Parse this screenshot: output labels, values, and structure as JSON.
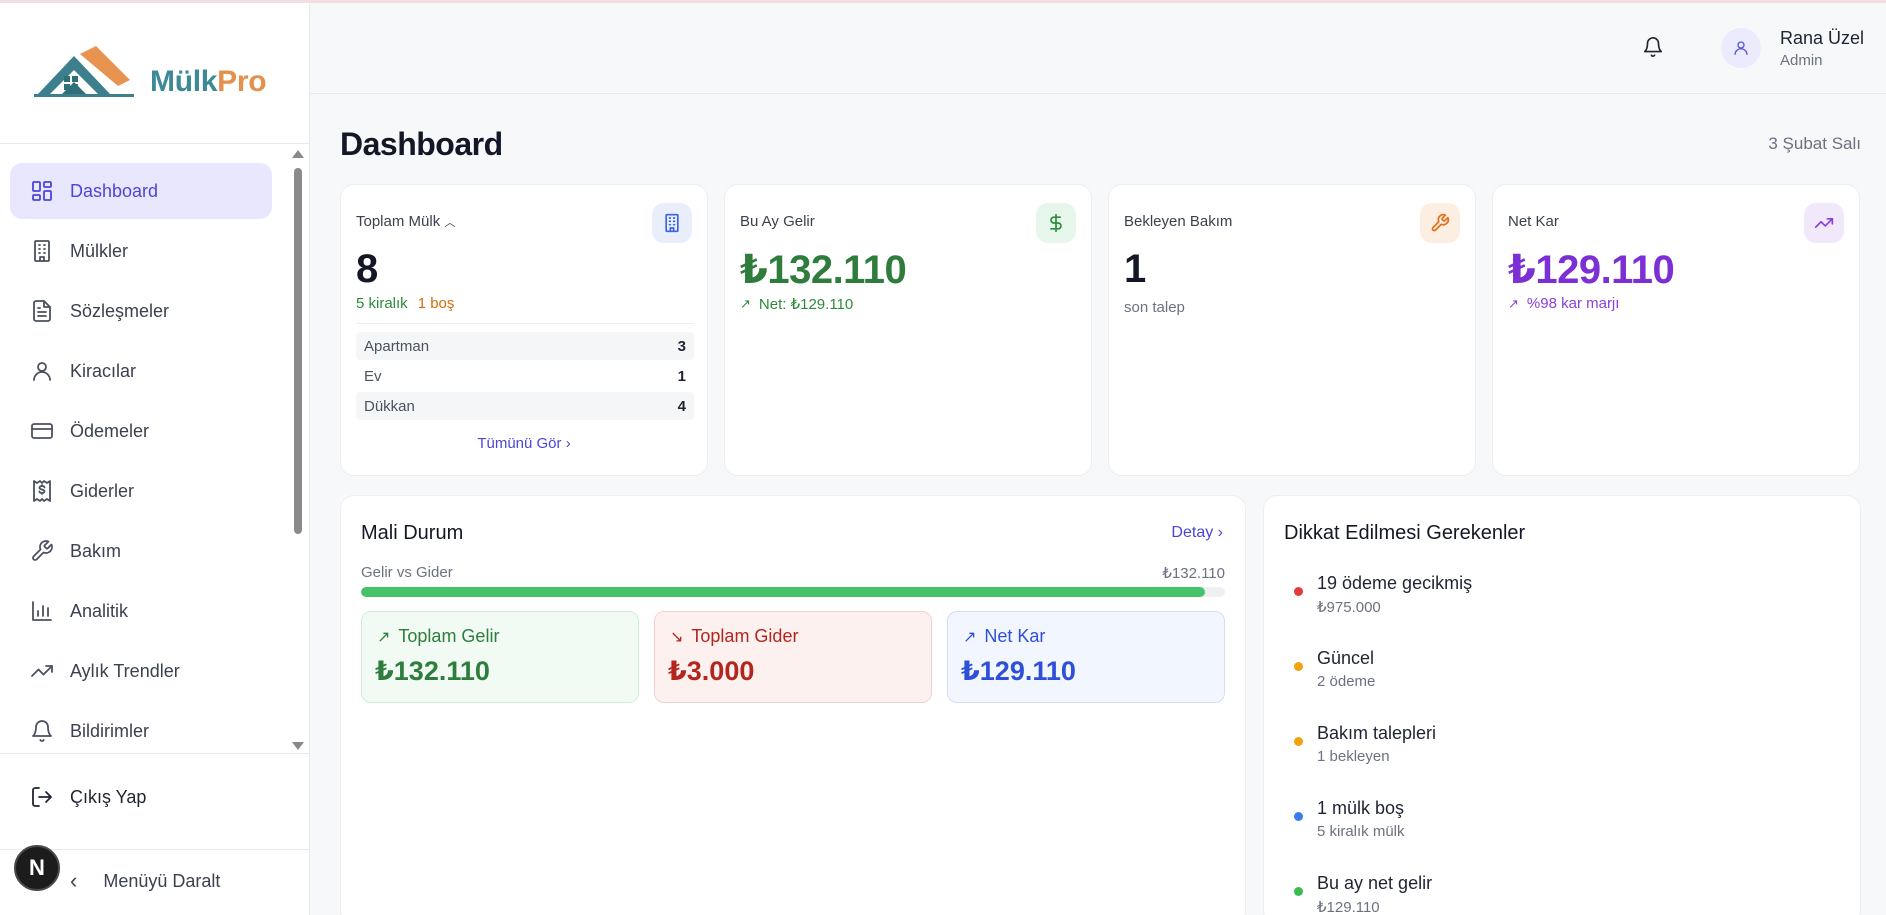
{
  "app": {
    "brand_part1": "Mülk",
    "brand_part2": "Pro",
    "colors": {
      "accent": "#4a46d8",
      "brand_teal": "#3d8a96",
      "brand_orange": "#e5914d"
    }
  },
  "sidebar": {
    "items": [
      {
        "label": "Dashboard",
        "icon": "dashboard-grid-icon",
        "active": true
      },
      {
        "label": "Mülkler",
        "icon": "building-icon"
      },
      {
        "label": "Sözleşmeler",
        "icon": "document-icon"
      },
      {
        "label": "Kiracılar",
        "icon": "user-icon"
      },
      {
        "label": "Ödemeler",
        "icon": "credit-card-icon"
      },
      {
        "label": "Giderler",
        "icon": "receipt-dollar-icon"
      },
      {
        "label": "Bakım",
        "icon": "wrench-icon"
      },
      {
        "label": "Analitik",
        "icon": "bar-chart-icon"
      },
      {
        "label": "Aylık Trendler",
        "icon": "trending-up-icon"
      },
      {
        "label": "Bildirimler",
        "icon": "bell-icon"
      }
    ],
    "logout_label": "Çıkış Yap",
    "collapse_label": "Menüyü Daralt",
    "badge_letter": "N"
  },
  "header": {
    "user_name": "Rana Üzel",
    "user_role": "Admin"
  },
  "page": {
    "title": "Dashboard",
    "date": "3 Şubat Salı"
  },
  "kpis": {
    "total": {
      "label": "Toplam Mülk",
      "value": "8",
      "rented": "5 kiralık",
      "vacant": "1 boş",
      "breakdown": [
        {
          "type": "Apartman",
          "count": "3"
        },
        {
          "type": "Ev",
          "count": "1"
        },
        {
          "type": "Dükkan",
          "count": "4"
        }
      ],
      "see_all": "Tümünü Gör"
    },
    "income": {
      "label": "Bu Ay Gelir",
      "value": "₺132.110",
      "sub": "Net: ₺129.110"
    },
    "maintenance": {
      "label": "Bekleyen Bakım",
      "value": "1",
      "sub": "son talep"
    },
    "profit": {
      "label": "Net Kar",
      "value": "₺129.110",
      "sub": "%98 kar marjı"
    }
  },
  "financial": {
    "title": "Mali Durum",
    "detail_link": "Detay",
    "bar_label": "Gelir vs Gider",
    "bar_value": "₺132.110",
    "bar_progress_percent": 97.7,
    "cards": [
      {
        "label": "Toplam Gelir",
        "value": "₺132.110",
        "color": "#2e7d3c"
      },
      {
        "label": "Toplam Gider",
        "value": "₺3.000",
        "color": "#b3261e"
      },
      {
        "label": "Net Kar",
        "value": "₺129.110",
        "color": "#2f4fd8"
      }
    ]
  },
  "attention": {
    "title": "Dikkat Edilmesi Gerekenler",
    "items": [
      {
        "main": "19 ödeme gecikmiş",
        "sub": "₺975.000",
        "color": "#e23b3b"
      },
      {
        "main": "Güncel",
        "sub": "2 ödeme",
        "color": "#f0a30a"
      },
      {
        "main": "Bakım talepleri",
        "sub": "1 bekleyen",
        "color": "#f0a30a"
      },
      {
        "main": "1 mülk boş",
        "sub": "5 kiralık mülk",
        "color": "#3b7bef"
      },
      {
        "main": "Bu ay net gelir",
        "sub": "₺129.110",
        "color": "#3bbb4f"
      }
    ]
  }
}
